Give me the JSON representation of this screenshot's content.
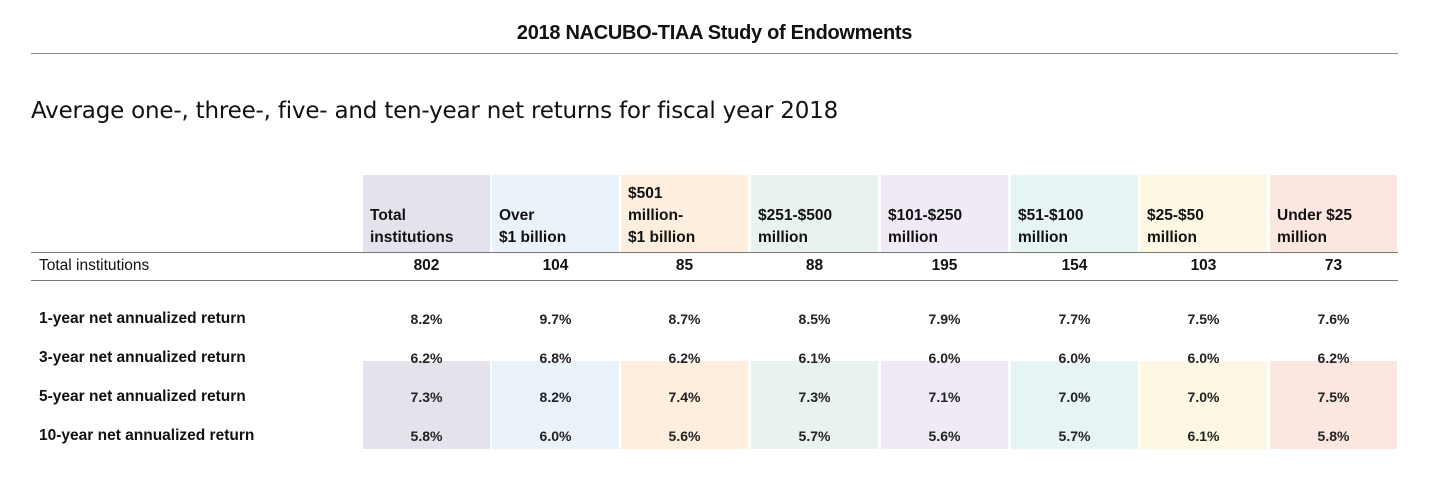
{
  "header": {
    "title": "2018 NACUBO-TIAA Study of Endowments",
    "subtitle": "Average one-, three-, five- and ten-year net returns for fiscal year 2018"
  },
  "chart_data": {
    "type": "table",
    "title": "Average one-, three-, five- and ten-year net returns for fiscal year 2018",
    "columns": [
      {
        "label_lines": [
          "Total",
          "institutions"
        ],
        "color": "#e4e3ec"
      },
      {
        "label_lines": [
          "Over",
          "$1 billion"
        ],
        "color": "#eaf2fa"
      },
      {
        "label_lines": [
          "$501",
          "million-",
          "$1 billion"
        ],
        "color": "#fdeede"
      },
      {
        "label_lines": [
          "$251-$500",
          "million"
        ],
        "color": "#e8f2ee"
      },
      {
        "label_lines": [
          "$101-$250",
          "million"
        ],
        "color": "#efeaf5"
      },
      {
        "label_lines": [
          "$51-$100",
          "million"
        ],
        "color": "#e6f4f4"
      },
      {
        "label_lines": [
          "$25-$50",
          "million"
        ],
        "color": "#fdf8e4"
      },
      {
        "label_lines": [
          "Under $25",
          "million"
        ],
        "color": "#fce7e0"
      }
    ],
    "count_row": {
      "label": "Total institutions",
      "values": [
        "802",
        "104",
        "85",
        "88",
        "195",
        "154",
        "103",
        "73"
      ]
    },
    "rows": [
      {
        "label": "1-year net annualized return",
        "values": [
          "8.2%",
          "9.7%",
          "8.7%",
          "8.5%",
          "7.9%",
          "7.7%",
          "7.5%",
          "7.6%"
        ]
      },
      {
        "label": "3-year net annualized return",
        "values": [
          "6.2%",
          "6.8%",
          "6.2%",
          "6.1%",
          "6.0%",
          "6.0%",
          "6.0%",
          "6.2%"
        ]
      },
      {
        "label": "5-year net annualized return",
        "values": [
          "7.3%",
          "8.2%",
          "7.4%",
          "7.3%",
          "7.1%",
          "7.0%",
          "7.0%",
          "7.5%"
        ]
      },
      {
        "label": "10-year net annualized return",
        "values": [
          "5.8%",
          "6.0%",
          "5.6%",
          "5.7%",
          "5.6%",
          "5.7%",
          "6.1%",
          "5.8%"
        ]
      }
    ]
  }
}
